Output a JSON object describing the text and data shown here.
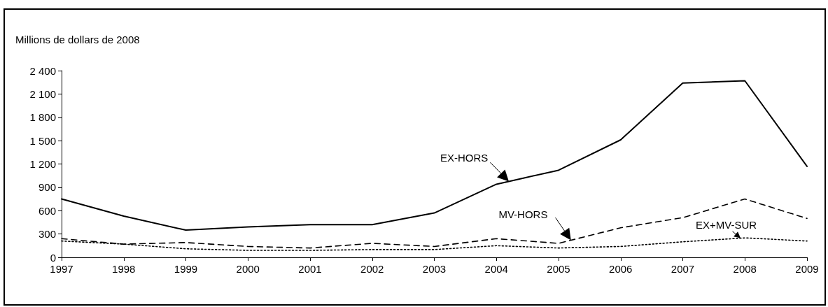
{
  "chart_data": {
    "type": "line",
    "ylabel": "Millions de dollars de 2008",
    "x": [
      1997,
      1998,
      1999,
      2000,
      2001,
      2002,
      2003,
      2004,
      2005,
      2006,
      2007,
      2008,
      2009
    ],
    "series": [
      {
        "name": "EX-HORS",
        "color": "#000000",
        "line_style": "solid",
        "values": [
          750,
          530,
          350,
          390,
          420,
          420,
          570,
          940,
          1120,
          1510,
          2240,
          2270,
          1170
        ]
      },
      {
        "name": "MV-HORS",
        "color": "#000000",
        "line_style": "dashed",
        "values": [
          240,
          170,
          190,
          140,
          120,
          180,
          140,
          240,
          180,
          380,
          510,
          750,
          500
        ]
      },
      {
        "name": "EX+MV-SUR",
        "color": "#000000",
        "line_style": "dotted",
        "values": [
          210,
          170,
          110,
          90,
          90,
          100,
          100,
          150,
          120,
          140,
          200,
          250,
          210
        ]
      }
    ],
    "xlim": [
      1997,
      2009
    ],
    "xticks": [
      1997,
      1998,
      1999,
      2000,
      2001,
      2002,
      2003,
      2004,
      2005,
      2006,
      2007,
      2008,
      2009
    ],
    "ylim": [
      0,
      2400
    ],
    "yticks": [
      0,
      300,
      600,
      900,
      {
        "value": 1200,
        "label": "1 200"
      },
      {
        "value": 1500,
        "label": "1 500"
      },
      {
        "value": 1800,
        "label": "1 800"
      },
      {
        "value": 2100,
        "label": "2 100"
      },
      {
        "value": 2400,
        "label": "2 400"
      }
    ],
    "grid": false,
    "marker": "none"
  }
}
